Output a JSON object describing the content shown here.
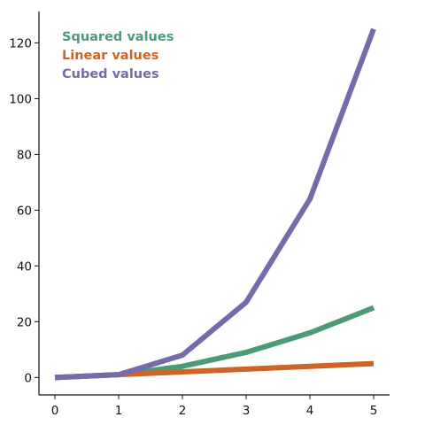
{
  "colors": {
    "squared": "#4c9a78",
    "linear": "#cc6525",
    "cubed": "#756bab",
    "axis": "#111111"
  },
  "chart_data": {
    "type": "line",
    "title": "",
    "xlabel": "",
    "ylabel": "",
    "x": [
      0,
      1,
      2,
      3,
      4,
      5
    ],
    "xlim": [
      -0.25,
      5.25
    ],
    "ylim": [
      -6.25,
      131.25
    ],
    "x_ticks": [
      "0",
      "1",
      "2",
      "3",
      "4",
      "5"
    ],
    "y_ticks": [
      "0",
      "20",
      "40",
      "60",
      "80",
      "100",
      "120"
    ],
    "grid": false,
    "legend_position": "upper-left",
    "series": [
      {
        "name": "Squared values",
        "values": [
          0,
          1,
          4,
          9,
          16,
          25
        ],
        "color_key": "squared"
      },
      {
        "name": "Linear values",
        "values": [
          0,
          1,
          2,
          3,
          4,
          5
        ],
        "color_key": "linear"
      },
      {
        "name": "Cubed values",
        "values": [
          0,
          1,
          8,
          27,
          64,
          125
        ],
        "color_key": "cubed"
      }
    ]
  }
}
